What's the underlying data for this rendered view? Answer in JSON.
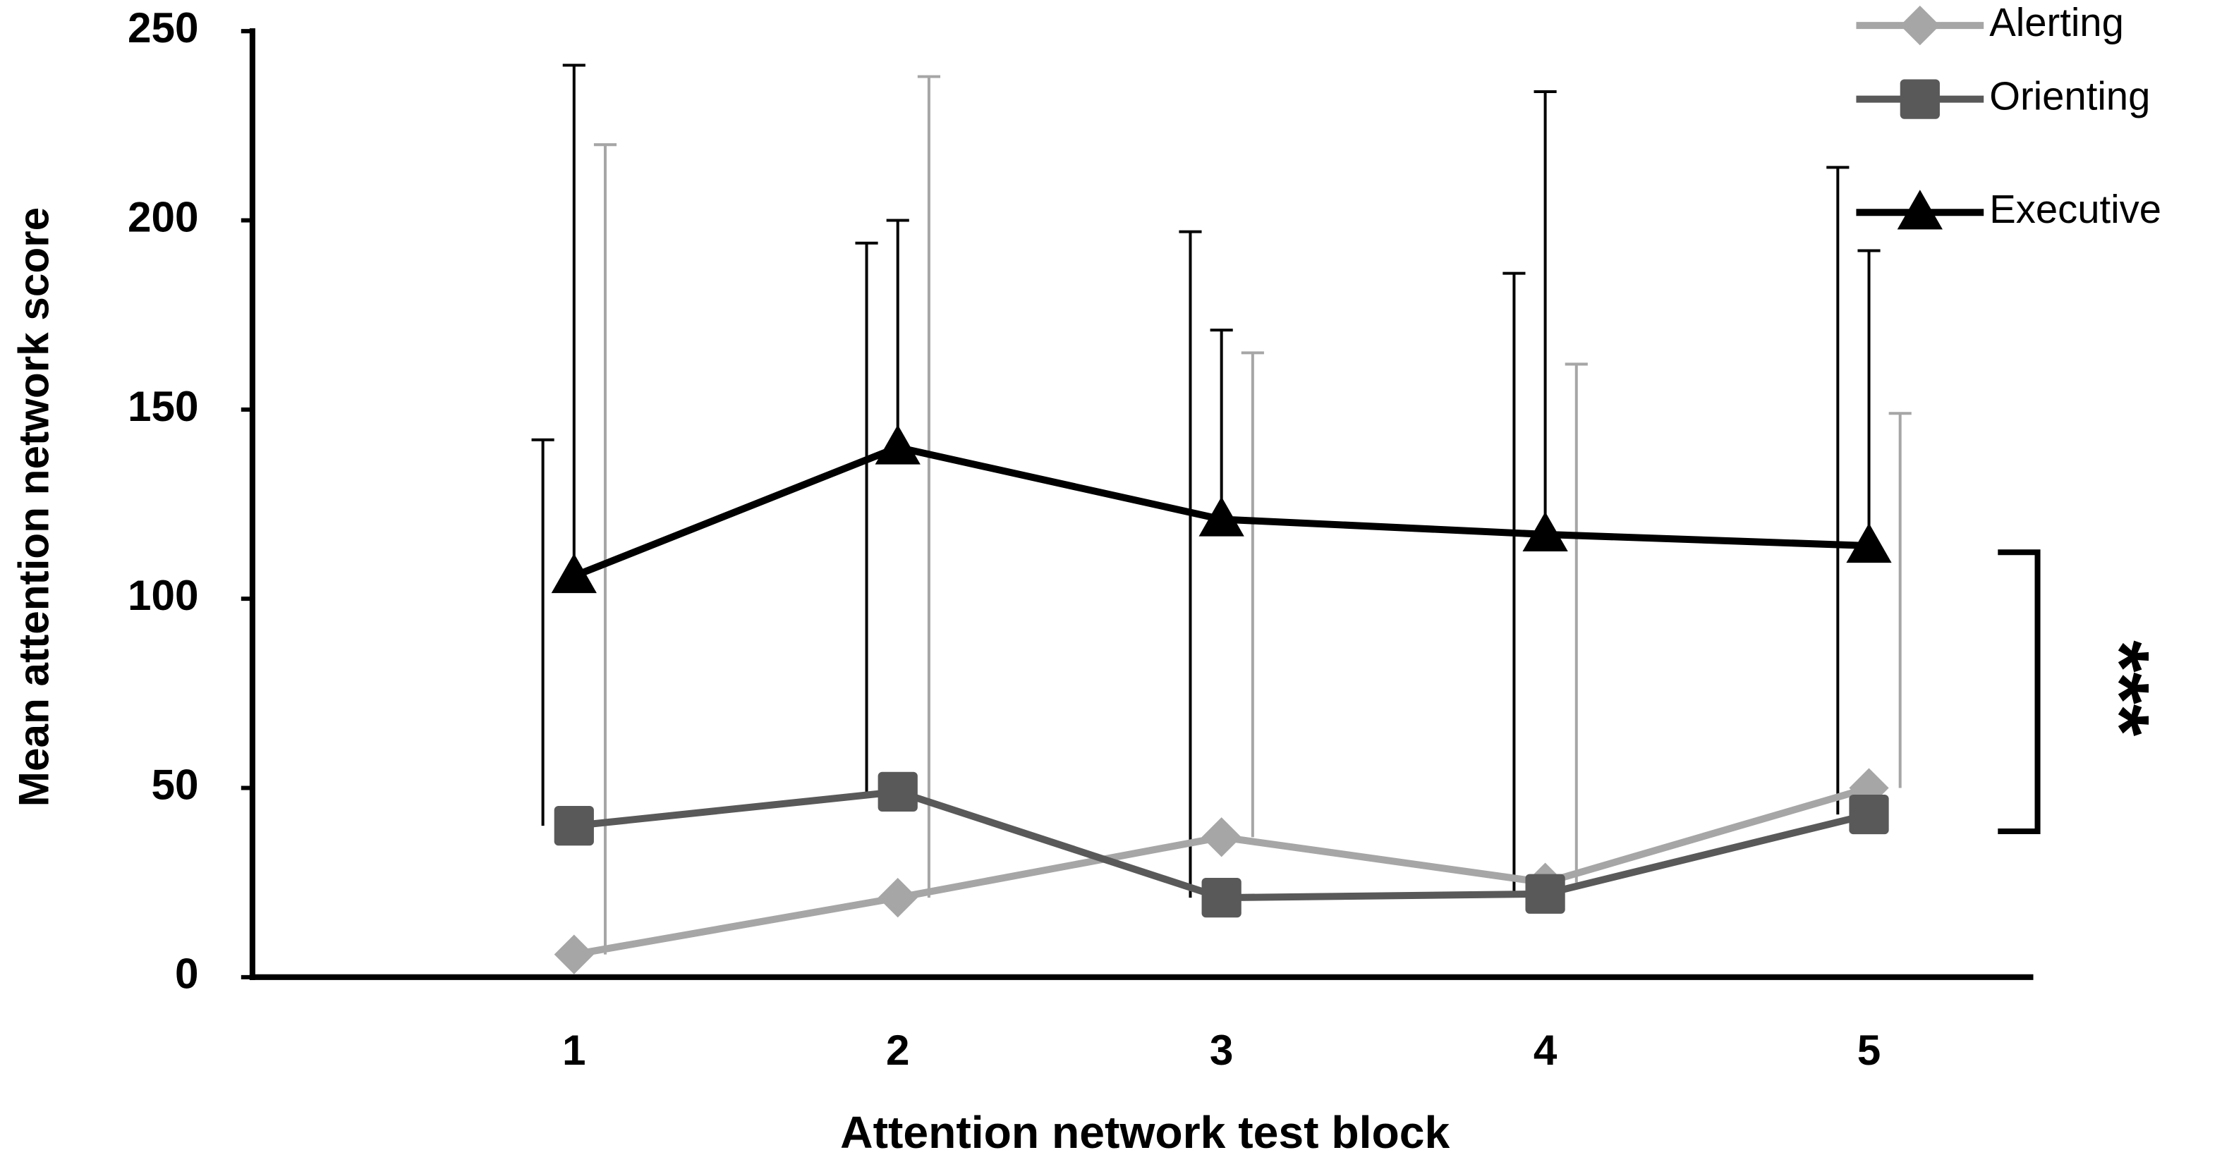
{
  "chart_data": {
    "type": "line",
    "x_label": "Attention network test block",
    "y_label": "Mean attention network score",
    "categories": [
      "1",
      "2",
      "3",
      "4",
      "5"
    ],
    "series": [
      {
        "name": "Alerting",
        "color": "#a6a6a6",
        "marker": "diamond",
        "values": [
          6,
          21,
          37,
          25,
          50
        ],
        "errors": [
          214,
          217,
          128,
          137,
          99
        ]
      },
      {
        "name": "Orienting",
        "color": "#595959",
        "marker": "square",
        "values": [
          40,
          49,
          21,
          22,
          43
        ],
        "errors": [
          102,
          145,
          176,
          164,
          171
        ]
      },
      {
        "name": "Executive",
        "color": "#000000",
        "marker": "triangle",
        "values": [
          106,
          140,
          121,
          117,
          114
        ],
        "errors": [
          135,
          60,
          50,
          117,
          78
        ]
      }
    ],
    "ylim": [
      0,
      250
    ],
    "yticks": [
      0,
      50,
      100,
      150,
      200,
      250
    ],
    "annotation": "***"
  }
}
